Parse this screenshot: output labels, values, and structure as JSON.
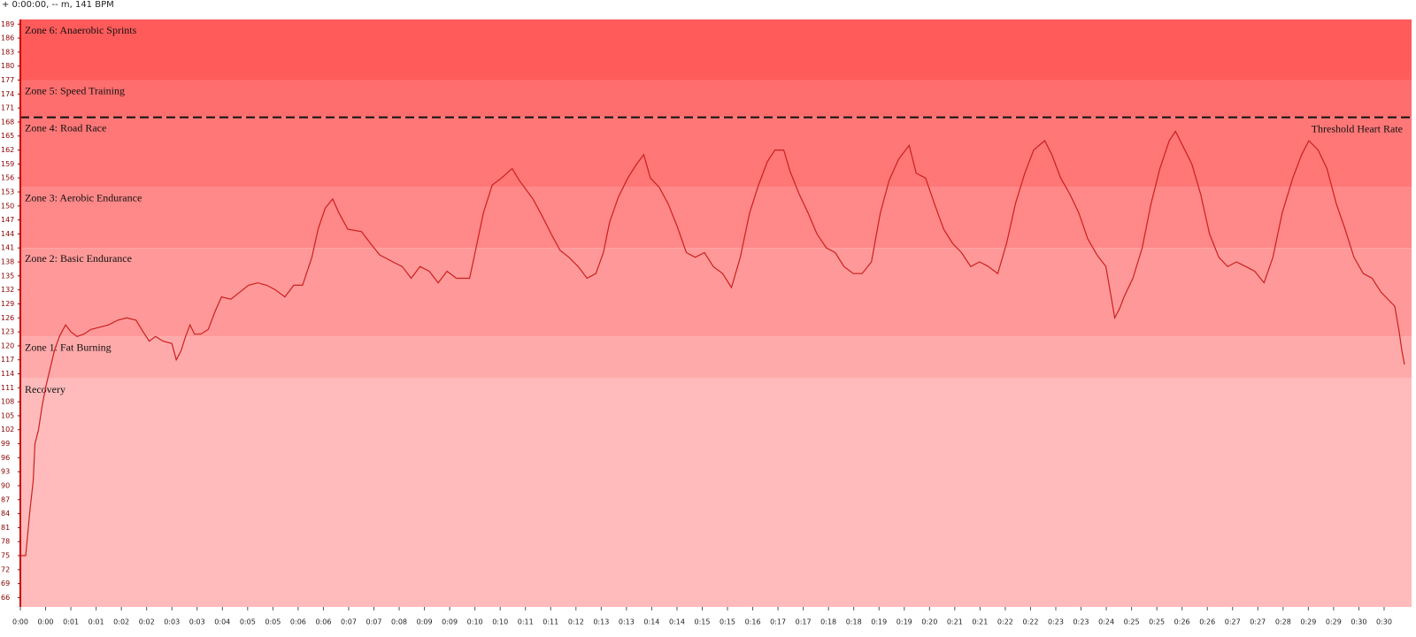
{
  "readout": "+ 0:00:00, -- m, 141 BPM",
  "chart_data": {
    "type": "line",
    "color": "#cc1f1f",
    "xlim": [
      0,
      31.4
    ],
    "ylim": [
      64,
      190
    ],
    "yticks": [
      66,
      69,
      72,
      75,
      78,
      81,
      84,
      87,
      90,
      93,
      96,
      99,
      102,
      105,
      108,
      111,
      114,
      117,
      120,
      123,
      126,
      129,
      132,
      135,
      138,
      141,
      144,
      147,
      150,
      153,
      156,
      159,
      162,
      165,
      168,
      171,
      174,
      177,
      180,
      183,
      186,
      189
    ],
    "xticks": [
      {
        "value": 0,
        "label": "0:00"
      },
      {
        "value": 0.57,
        "label": "0:00"
      },
      {
        "value": 1.14,
        "label": "0:01"
      },
      {
        "value": 1.71,
        "label": "0:01"
      },
      {
        "value": 2.28,
        "label": "0:02"
      },
      {
        "value": 2.85,
        "label": "0:02"
      },
      {
        "value": 3.42,
        "label": "0:03"
      },
      {
        "value": 3.99,
        "label": "0:03"
      },
      {
        "value": 4.56,
        "label": "0:04"
      },
      {
        "value": 5.13,
        "label": "0:05"
      },
      {
        "value": 5.7,
        "label": "0:05"
      },
      {
        "value": 6.27,
        "label": "0:06"
      },
      {
        "value": 6.84,
        "label": "0:06"
      },
      {
        "value": 7.41,
        "label": "0:07"
      },
      {
        "value": 7.98,
        "label": "0:07"
      },
      {
        "value": 8.55,
        "label": "0:08"
      },
      {
        "value": 9.12,
        "label": "0:09"
      },
      {
        "value": 9.69,
        "label": "0:09"
      },
      {
        "value": 10.26,
        "label": "0:10"
      },
      {
        "value": 10.83,
        "label": "0:10"
      },
      {
        "value": 11.4,
        "label": "0:11"
      },
      {
        "value": 11.97,
        "label": "0:11"
      },
      {
        "value": 12.54,
        "label": "0:12"
      },
      {
        "value": 13.11,
        "label": "0:13"
      },
      {
        "value": 13.68,
        "label": "0:13"
      },
      {
        "value": 14.25,
        "label": "0:14"
      },
      {
        "value": 14.82,
        "label": "0:14"
      },
      {
        "value": 15.39,
        "label": "0:15"
      },
      {
        "value": 15.96,
        "label": "0:15"
      },
      {
        "value": 16.53,
        "label": "0:16"
      },
      {
        "value": 17.1,
        "label": "0:17"
      },
      {
        "value": 17.67,
        "label": "0:17"
      },
      {
        "value": 18.24,
        "label": "0:18"
      },
      {
        "value": 18.81,
        "label": "0:18"
      },
      {
        "value": 19.38,
        "label": "0:19"
      },
      {
        "value": 19.95,
        "label": "0:19"
      },
      {
        "value": 20.52,
        "label": "0:20"
      },
      {
        "value": 21.09,
        "label": "0:21"
      },
      {
        "value": 21.66,
        "label": "0:21"
      },
      {
        "value": 22.23,
        "label": "0:22"
      },
      {
        "value": 22.8,
        "label": "0:22"
      },
      {
        "value": 23.37,
        "label": "0:23"
      },
      {
        "value": 23.94,
        "label": "0:23"
      },
      {
        "value": 24.51,
        "label": "0:24"
      },
      {
        "value": 25.08,
        "label": "0:25"
      },
      {
        "value": 25.65,
        "label": "0:25"
      },
      {
        "value": 26.22,
        "label": "0:26"
      },
      {
        "value": 26.79,
        "label": "0:26"
      },
      {
        "value": 27.36,
        "label": "0:27"
      },
      {
        "value": 27.93,
        "label": "0:27"
      },
      {
        "value": 28.5,
        "label": "0:28"
      },
      {
        "value": 29.07,
        "label": "0:29"
      },
      {
        "value": 29.64,
        "label": "0:29"
      },
      {
        "value": 30.21,
        "label": "0:30"
      },
      {
        "value": 30.78,
        "label": "0:30"
      }
    ],
    "zones": [
      {
        "label": "Zone 6: Anaerobic Sprints",
        "from": 177,
        "to": 190,
        "color": "#ff5b5b"
      },
      {
        "label": "Zone 5: Speed Training",
        "from": 169,
        "to": 177,
        "color": "#ff6e6e"
      },
      {
        "label": "Zone 4: Road Race",
        "from": 154,
        "to": 169,
        "color": "#ff7777"
      },
      {
        "label": "Zone 3: Aerobic Endurance",
        "from": 141,
        "to": 154,
        "color": "#ff8888"
      },
      {
        "label": "Zone 2: Basic Endurance",
        "from": 122,
        "to": 141,
        "color": "#ff9999"
      },
      {
        "label": "Zone 1: Fat Burning",
        "from": 113,
        "to": 122,
        "color": "#ffaaaa"
      },
      {
        "label": "Recovery",
        "from": 64,
        "to": 113,
        "color": "#ffbbbb"
      }
    ],
    "threshold": {
      "value": 169,
      "label": "Threshold Heart Rate"
    },
    "x": [
      0,
      0.12,
      0.16,
      0.22,
      0.29,
      0.33,
      0.41,
      0.49,
      0.57,
      0.67,
      0.77,
      0.88,
      1.02,
      1.14,
      1.28,
      1.43,
      1.59,
      1.79,
      1.99,
      2.2,
      2.4,
      2.61,
      2.77,
      2.91,
      3.05,
      3.22,
      3.42,
      3.52,
      3.63,
      3.73,
      3.83,
      3.93,
      4.07,
      4.24,
      4.4,
      4.54,
      4.75,
      4.95,
      5.15,
      5.36,
      5.56,
      5.76,
      5.97,
      6.17,
      6.37,
      6.58,
      6.72,
      6.88,
      7.05,
      7.19,
      7.39,
      7.7,
      7.9,
      8.11,
      8.41,
      8.62,
      8.82,
      9.02,
      9.23,
      9.43,
      9.63,
      9.84,
      10.14,
      10.24,
      10.45,
      10.65,
      10.86,
      11.1,
      11.26,
      11.57,
      11.77,
      11.98,
      12.18,
      12.38,
      12.59,
      12.79,
      12.99,
      13.16,
      13.3,
      13.5,
      13.71,
      13.91,
      14.07,
      14.22,
      14.42,
      14.62,
      14.83,
      15.03,
      15.23,
      15.44,
      15.64,
      15.85,
      16.05,
      16.25,
      16.46,
      16.66,
      16.86,
      17.03,
      17.23,
      17.37,
      17.58,
      17.78,
      17.98,
      18.19,
      18.39,
      18.59,
      18.8,
      19,
      19.21,
      19.41,
      19.61,
      19.82,
      20.06,
      20.22,
      20.43,
      20.63,
      20.84,
      21.04,
      21.24,
      21.45,
      21.65,
      21.85,
      22.06,
      22.26,
      22.46,
      22.67,
      22.87,
      23.12,
      23.28,
      23.48,
      23.69,
      23.89,
      24.09,
      24.3,
      24.5,
      24.7,
      24.81,
      24.91,
      25.11,
      25.32,
      25.52,
      25.72,
      25.93,
      26.07,
      26.23,
      26.44,
      26.64,
      26.84,
      27.05,
      27.25,
      27.45,
      27.66,
      27.86,
      28.07,
      28.27,
      28.48,
      28.72,
      28.92,
      29.08,
      29.29,
      29.49,
      29.7,
      29.9,
      30.1,
      30.31,
      30.51,
      30.71,
      31.02,
      31.12,
      31.18,
      31.24
    ],
    "values": [
      75,
      75,
      79,
      85,
      91,
      99,
      102,
      107,
      111,
      115,
      119,
      122,
      124.5,
      123,
      122,
      122.5,
      123.5,
      124,
      124.5,
      125.5,
      126,
      125.5,
      123,
      121,
      122,
      121,
      120.5,
      117,
      119,
      122,
      124.5,
      122.5,
      122.5,
      123.5,
      127.5,
      130.5,
      130,
      131.5,
      133,
      133.5,
      133,
      132,
      130.5,
      133,
      133,
      139,
      145,
      149.5,
      151.5,
      148.5,
      145,
      144.5,
      142,
      139.5,
      138,
      137,
      134.5,
      137,
      136,
      133.5,
      136,
      134.5,
      134.5,
      139,
      148.5,
      154.5,
      156,
      158,
      155.5,
      151.5,
      148,
      144,
      140.5,
      139,
      137,
      134.5,
      135.5,
      140,
      146.5,
      152,
      156,
      159,
      161,
      156,
      154,
      150.5,
      145.5,
      140,
      139,
      140,
      137,
      135.5,
      132.5,
      139,
      148.5,
      154.5,
      159.5,
      162,
      162,
      157.5,
      152.5,
      148.5,
      144,
      141,
      140,
      137,
      135.5,
      135.5,
      138,
      148.5,
      155.5,
      160,
      163,
      157,
      156,
      150.5,
      145,
      142,
      140,
      137,
      138,
      137,
      135.5,
      142,
      150.5,
      157,
      162,
      164,
      161,
      156,
      152.5,
      148.5,
      143,
      139.5,
      137,
      126,
      128,
      130.5,
      134.5,
      141,
      150.5,
      158,
      164,
      166,
      163,
      159,
      152.5,
      144,
      139,
      137,
      138,
      137,
      136,
      133.5,
      139,
      148.5,
      156,
      161,
      164,
      162,
      158,
      150.5,
      145,
      139,
      135.5,
      134.5,
      131.5,
      128.5,
      123,
      119,
      116
    ]
  }
}
